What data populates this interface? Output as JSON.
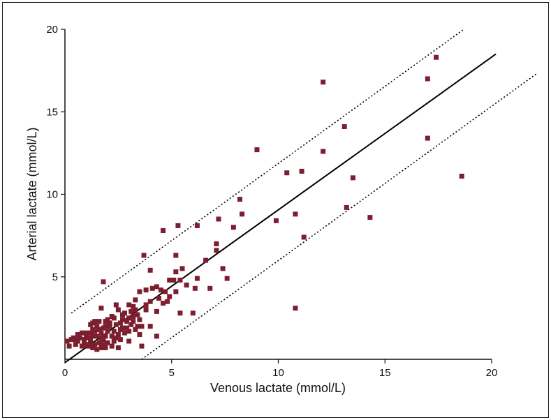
{
  "chart_data": {
    "type": "scatter",
    "xlabel": "Venous lactate (mmol/L)",
    "ylabel": "Arterial lactate (mmol/L)",
    "xlim": [
      0,
      20
    ],
    "ylim": [
      0,
      20
    ],
    "x_ticks": [
      0,
      5,
      10,
      15,
      20
    ],
    "y_ticks": [
      5,
      10,
      15,
      20
    ],
    "grid": false,
    "point_color": "#7b1e2e",
    "line_color": "#000000",
    "regression_line": {
      "x": [
        0,
        20.2
      ],
      "y": [
        -0.2,
        18.5
      ],
      "style": "solid"
    },
    "limit_lines": [
      {
        "x": [
          0.3,
          18.7
        ],
        "y": [
          2.8,
          20.0
        ],
        "style": "dotted"
      },
      {
        "x": [
          3.6,
          22.1
        ],
        "y": [
          0.0,
          17.3
        ],
        "style": "dotted"
      }
    ],
    "points": [
      [
        17.4,
        18.3
      ],
      [
        17.0,
        17.0
      ],
      [
        12.1,
        16.8
      ],
      [
        13.1,
        14.1
      ],
      [
        17.0,
        13.4
      ],
      [
        9.0,
        12.7
      ],
      [
        12.1,
        12.6
      ],
      [
        11.1,
        11.4
      ],
      [
        10.4,
        11.3
      ],
      [
        13.5,
        11.0
      ],
      [
        18.6,
        11.1
      ],
      [
        8.2,
        9.7
      ],
      [
        13.2,
        9.2
      ],
      [
        8.3,
        8.8
      ],
      [
        10.8,
        8.8
      ],
      [
        7.2,
        8.5
      ],
      [
        14.3,
        8.6
      ],
      [
        5.3,
        8.1
      ],
      [
        6.2,
        8.1
      ],
      [
        7.9,
        8.0
      ],
      [
        4.6,
        7.8
      ],
      [
        9.9,
        8.4
      ],
      [
        11.2,
        7.4
      ],
      [
        7.1,
        7.0
      ],
      [
        7.1,
        6.6
      ],
      [
        5.2,
        6.3
      ],
      [
        3.7,
        6.3
      ],
      [
        6.6,
        6.0
      ],
      [
        7.4,
        5.5
      ],
      [
        5.5,
        5.5
      ],
      [
        4.0,
        5.4
      ],
      [
        5.2,
        5.3
      ],
      [
        7.6,
        4.9
      ],
      [
        1.8,
        4.7
      ],
      [
        5.4,
        4.8
      ],
      [
        5.1,
        4.8
      ],
      [
        4.9,
        4.8
      ],
      [
        6.2,
        4.9
      ],
      [
        5.7,
        4.5
      ],
      [
        6.1,
        4.3
      ],
      [
        6.8,
        4.3
      ],
      [
        4.3,
        4.4
      ],
      [
        4.1,
        4.3
      ],
      [
        3.8,
        4.2
      ],
      [
        3.5,
        4.1
      ],
      [
        4.5,
        4.2
      ],
      [
        4.7,
        4.1
      ],
      [
        5.2,
        4.1
      ],
      [
        4.9,
        3.8
      ],
      [
        4.4,
        3.7
      ],
      [
        4.0,
        3.5
      ],
      [
        3.8,
        3.3
      ],
      [
        3.3,
        3.6
      ],
      [
        4.6,
        3.4
      ],
      [
        4.8,
        3.5
      ],
      [
        3.2,
        3.2
      ],
      [
        3.0,
        3.3
      ],
      [
        2.4,
        3.3
      ],
      [
        1.7,
        3.1
      ],
      [
        3.8,
        3.0
      ],
      [
        4.3,
        2.9
      ],
      [
        5.4,
        2.8
      ],
      [
        6.0,
        2.8
      ],
      [
        2.5,
        3.0
      ],
      [
        2.8,
        2.8
      ],
      [
        3.2,
        2.6
      ],
      [
        3.5,
        2.4
      ],
      [
        3.0,
        2.5
      ],
      [
        2.7,
        2.4
      ],
      [
        2.3,
        2.5
      ],
      [
        2.0,
        2.4
      ],
      [
        1.9,
        2.3
      ],
      [
        1.6,
        2.3
      ],
      [
        1.4,
        2.3
      ],
      [
        1.3,
        2.2
      ],
      [
        1.2,
        2.1
      ],
      [
        1.5,
        2.0
      ],
      [
        1.8,
        1.9
      ],
      [
        2.1,
        2.0
      ],
      [
        2.4,
        2.1
      ],
      [
        2.6,
        2.2
      ],
      [
        2.9,
        2.3
      ],
      [
        3.1,
        2.1
      ],
      [
        3.4,
        2.0
      ],
      [
        3.6,
        2.0
      ],
      [
        2.9,
        1.9
      ],
      [
        2.6,
        1.8
      ],
      [
        2.3,
        1.7
      ],
      [
        2.0,
        1.7
      ],
      [
        1.7,
        1.6
      ],
      [
        1.4,
        1.7
      ],
      [
        1.2,
        1.6
      ],
      [
        1.0,
        1.6
      ],
      [
        0.8,
        1.6
      ],
      [
        0.6,
        1.5
      ],
      [
        0.4,
        1.3
      ],
      [
        0.3,
        1.2
      ],
      [
        0.1,
        1.1
      ],
      [
        0.2,
        0.8
      ],
      [
        0.5,
        0.9
      ],
      [
        0.6,
        1.1
      ],
      [
        0.9,
        1.2
      ],
      [
        1.1,
        1.3
      ],
      [
        1.3,
        1.4
      ],
      [
        1.5,
        1.4
      ],
      [
        1.7,
        1.3
      ],
      [
        1.9,
        1.4
      ],
      [
        2.2,
        1.4
      ],
      [
        2.5,
        1.5
      ],
      [
        2.8,
        1.6
      ],
      [
        3.0,
        1.7
      ],
      [
        3.3,
        1.8
      ],
      [
        1.2,
        1.0
      ],
      [
        1.4,
        0.9
      ],
      [
        1.6,
        1.0
      ],
      [
        1.8,
        0.9
      ],
      [
        2.0,
        1.0
      ],
      [
        2.3,
        1.1
      ],
      [
        2.6,
        1.2
      ],
      [
        3.0,
        1.1
      ],
      [
        1.1,
        0.8
      ],
      [
        1.3,
        0.7
      ],
      [
        1.5,
        0.6
      ],
      [
        1.7,
        0.7
      ],
      [
        1.9,
        0.7
      ],
      [
        2.2,
        0.8
      ],
      [
        2.5,
        0.7
      ],
      [
        3.6,
        0.8
      ],
      [
        0.8,
        0.8
      ],
      [
        1.0,
        0.9
      ],
      [
        1.2,
        1.2
      ],
      [
        4.3,
        1.4
      ],
      [
        4.0,
        2.0
      ],
      [
        3.5,
        1.5
      ],
      [
        10.8,
        3.1
      ],
      [
        0.5,
        1.2
      ],
      [
        0.9,
        1.0
      ],
      [
        1.6,
        1.8
      ],
      [
        2.1,
        2.2
      ],
      [
        2.7,
        2.7
      ],
      [
        3.1,
        2.9
      ],
      [
        3.3,
        3.0
      ],
      [
        2.2,
        2.6
      ],
      [
        1.9,
        2.0
      ],
      [
        1.3,
        1.8
      ],
      [
        1.0,
        1.4
      ],
      [
        0.7,
        1.3
      ],
      [
        1.8,
        1.2
      ],
      [
        2.4,
        1.3
      ],
      [
        2.7,
        1.9
      ],
      [
        3.2,
        2.3
      ],
      [
        3.4,
        2.7
      ]
    ]
  }
}
